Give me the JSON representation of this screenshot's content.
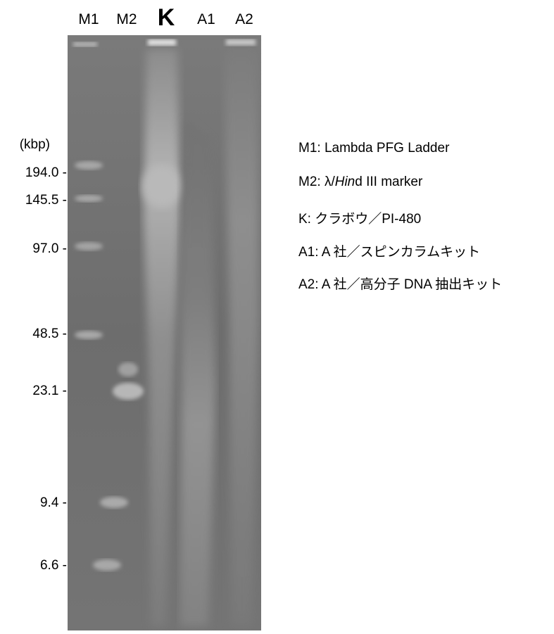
{
  "lanes": [
    "M1",
    "M2",
    "K",
    "A1",
    "A2"
  ],
  "unit": "(kbp)",
  "sizes": [
    "194.0 -",
    "145.5 -",
    "97.0 -",
    "48.5 -",
    "23.1 -",
    "9.4 -",
    "6.6 -"
  ],
  "legend": {
    "m1": "M1: Lambda PFG Ladder",
    "m2_prefix": "M2: λ/",
    "m2_italic": "Hin",
    "m2_suffix": "d III marker",
    "k": "K:  クラボウ／PI-480",
    "a1": "A1: A 社／スピンカラムキット",
    "a2": "A2: A 社／高分子 DNA 抽出キット"
  }
}
